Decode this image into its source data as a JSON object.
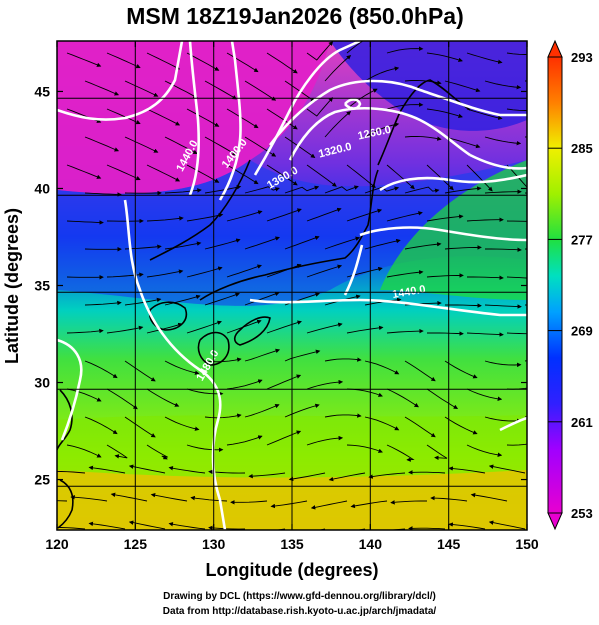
{
  "title": "MSM 18Z19Jan2026 (850.0hPa)",
  "xlabel": "Longitude (degrees)",
  "ylabel": "Latitude  (degrees)",
  "x_ticks": [
    120,
    125,
    130,
    135,
    140,
    145,
    150
  ],
  "y_ticks": [
    25,
    30,
    35,
    40,
    45
  ],
  "xlim": [
    120,
    150
  ],
  "ylim": [
    22.4,
    47.6
  ],
  "colorbar": {
    "min": 253,
    "max": 293,
    "tick_labels": [
      "293",
      "285",
      "277",
      "269",
      "261",
      "253"
    ],
    "tick_values": [
      293,
      285,
      277,
      269,
      261,
      253
    ],
    "colors": [
      "#d8006d",
      "#e800e0",
      "#a000ff",
      "#3020ff",
      "#0050ff",
      "#00c8ff",
      "#00e0a0",
      "#20e040",
      "#60e000",
      "#b0f000",
      "#f0f000",
      "#ffc000",
      "#ff8000",
      "#ff3000"
    ]
  },
  "contours": [
    {
      "label": "1260.0",
      "lon": 140.3,
      "lat": 42.7,
      "rot": -12
    },
    {
      "label": "1320.0",
      "lon": 137.8,
      "lat": 41.8,
      "rot": -14
    },
    {
      "label": "1360.0",
      "lon": 134.5,
      "lat": 40.4,
      "rot": -30
    },
    {
      "label": "1400.0",
      "lon": 131.5,
      "lat": 41.7,
      "rot": -52
    },
    {
      "label": "1440.0",
      "lon": 128.5,
      "lat": 41.6,
      "rot": -62
    },
    {
      "label": "1440.0",
      "lon": 142.5,
      "lat": 34.5,
      "rot": -10
    },
    {
      "label": "1480.0",
      "lon": 129.8,
      "lat": 30.8,
      "rot": -60
    }
  ],
  "credits": {
    "line1": "Drawing by DCL (https://www.gfd-dennou.org/library/dcl/)",
    "line2": "Data from http://database.rish.kyoto-u.ac.jp/arch/jmadata/"
  }
}
